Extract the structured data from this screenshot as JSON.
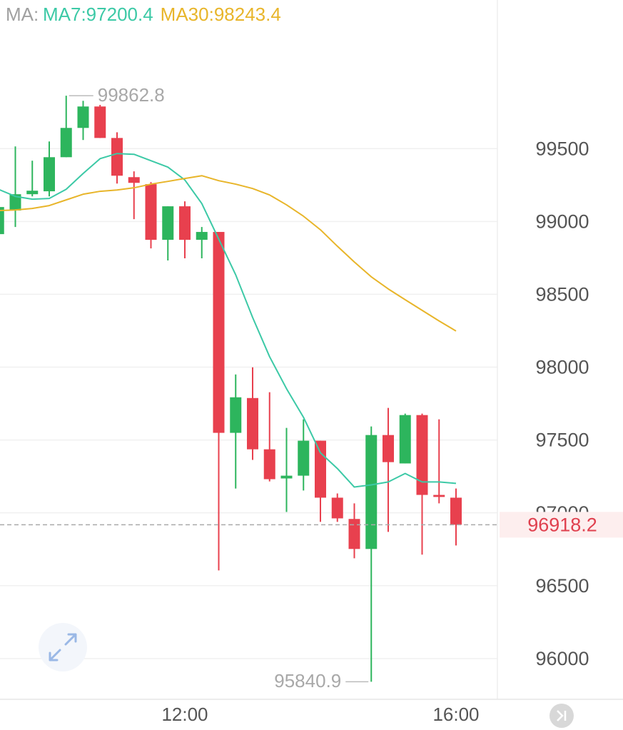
{
  "chart_data": {
    "type": "candlestick",
    "legend_title": "MA:",
    "categories": [
      null,
      null,
      null,
      null,
      null,
      null,
      null,
      null,
      null,
      null,
      null,
      "12:00",
      null,
      null,
      null,
      null,
      null,
      null,
      null,
      null,
      null,
      null,
      null,
      null,
      null,
      null,
      null,
      "16:00"
    ],
    "open": [
      98913,
      99075,
      99187,
      99207,
      99441,
      99642,
      99789,
      99573,
      99304,
      99256,
      98874,
      99104,
      98874,
      98928,
      97549,
      97788,
      97436,
      97236,
      97255,
      97495,
      97104,
      96958,
      96752,
      97534,
      97339,
      97671,
      97123,
      97104
    ],
    "high": [
      99120,
      99515,
      99417,
      99549,
      99862.8,
      99828,
      99800,
      99612,
      99344,
      99270,
      99104,
      99138,
      98962,
      98928,
      97950,
      97999,
      97828,
      97583,
      97642,
      97495,
      97133,
      97065,
      97593,
      97720,
      97681,
      97681,
      97642,
      97167
    ],
    "low": [
      98913,
      98962,
      99172,
      99172,
      99441,
      99559,
      99573,
      99260,
      99016,
      98815,
      98732,
      98747,
      98747,
      96605,
      97167,
      97363,
      97216,
      97006,
      97153,
      96938,
      96938,
      96688,
      95840.9,
      96869,
      97339,
      96713,
      97065,
      96776
    ],
    "close": [
      99099,
      99187,
      99211,
      99441,
      99642,
      99789,
      99573,
      99314,
      99265,
      98874,
      99104,
      98874,
      98928,
      97549,
      97793,
      97436,
      97231,
      97255,
      97495,
      97104,
      96962,
      96752,
      97534,
      97348,
      97671,
      97123,
      97109,
      96918.2
    ],
    "up_color": "#2db55d",
    "down_color": "#e8404e",
    "series": [
      {
        "name": "MA7:97200.4",
        "color": "#3cc9a6",
        "values": [
          99221,
          99172,
          99153,
          99158,
          99221,
          99329,
          99431,
          99466,
          99461,
          99417,
          99373,
          99285,
          99123,
          98879,
          98634,
          98341,
          98072,
          97852,
          97656,
          97412,
          97304,
          97177,
          97192,
          97212,
          97270,
          97212,
          97212,
          97202
        ]
      },
      {
        "name": "MA30:98243.4",
        "color": "#e8b52a",
        "values": [
          99075,
          99079,
          99089,
          99109,
          99148,
          99187,
          99207,
          99216,
          99231,
          99256,
          99275,
          99295,
          99314,
          99280,
          99256,
          99226,
          99182,
          99114,
          99036,
          98943,
          98830,
          98722,
          98620,
          98537,
          98463,
          98390,
          98317,
          98248
        ]
      }
    ],
    "ylim": [
      95720,
      100520
    ],
    "yticks": [
      96000,
      96500,
      97000,
      97500,
      98000,
      98500,
      99000,
      99500
    ],
    "grid": true
  }
}
